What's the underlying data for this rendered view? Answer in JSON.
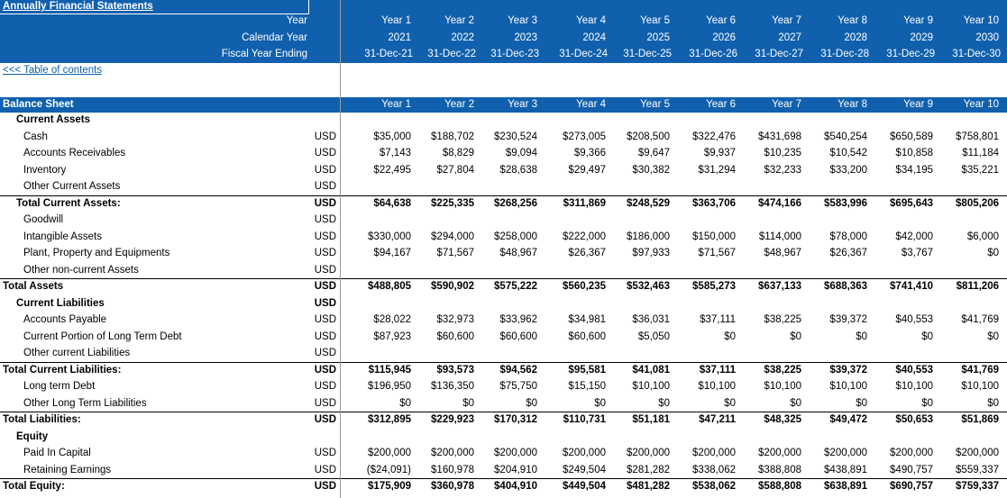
{
  "header": {
    "title": "Annually Financial Statements",
    "row_labels": [
      "Year",
      "Calendar Year",
      "Fiscal Year Ending"
    ],
    "years": [
      "Year 1",
      "Year 2",
      "Year 3",
      "Year 4",
      "Year 5",
      "Year 6",
      "Year 7",
      "Year 8",
      "Year 9",
      "Year 10"
    ],
    "calendar_years": [
      "2021",
      "2022",
      "2023",
      "2024",
      "2025",
      "2026",
      "2027",
      "2028",
      "2029",
      "2030"
    ],
    "fiscal_year_endings": [
      "31-Dec-21",
      "31-Dec-22",
      "31-Dec-23",
      "31-Dec-24",
      "31-Dec-25",
      "31-Dec-26",
      "31-Dec-27",
      "31-Dec-28",
      "31-Dec-29",
      "31-Dec-30"
    ]
  },
  "toc_link": "<<< Table of contents",
  "balance_sheet": {
    "title": "Balance Sheet",
    "rows": [
      {
        "label": "Current Assets",
        "indent": 1,
        "bold": true,
        "unit": "",
        "values": []
      },
      {
        "label": "Cash",
        "indent": 2,
        "bold": false,
        "unit": "USD",
        "values": [
          "$35,000",
          "$188,702",
          "$230,524",
          "$273,005",
          "$208,500",
          "$322,476",
          "$431,698",
          "$540,254",
          "$650,589",
          "$758,801"
        ]
      },
      {
        "label": "Accounts Receivables",
        "indent": 2,
        "bold": false,
        "unit": "USD",
        "values": [
          "$7,143",
          "$8,829",
          "$9,094",
          "$9,366",
          "$9,647",
          "$9,937",
          "$10,235",
          "$10,542",
          "$10,858",
          "$11,184"
        ]
      },
      {
        "label": "Inventory",
        "indent": 2,
        "bold": false,
        "unit": "USD",
        "values": [
          "$22,495",
          "$27,804",
          "$28,638",
          "$29,497",
          "$30,382",
          "$31,294",
          "$32,233",
          "$33,200",
          "$34,195",
          "$35,221"
        ]
      },
      {
        "label": "Other Current Assets",
        "indent": 2,
        "bold": false,
        "unit": "USD",
        "values": []
      },
      {
        "label": "Total Current Assets:",
        "indent": 1,
        "bold": true,
        "unit": "USD",
        "values": [
          "$64,638",
          "$225,335",
          "$268,256",
          "$311,869",
          "$248,529",
          "$363,706",
          "$474,166",
          "$583,996",
          "$695,643",
          "$805,206"
        ]
      },
      {
        "label": "Goodwill",
        "indent": 2,
        "bold": false,
        "unit": "USD",
        "values": []
      },
      {
        "label": "Intangible Assets",
        "indent": 2,
        "bold": false,
        "unit": "USD",
        "values": [
          "$330,000",
          "$294,000",
          "$258,000",
          "$222,000",
          "$186,000",
          "$150,000",
          "$114,000",
          "$78,000",
          "$42,000",
          "$6,000"
        ]
      },
      {
        "label": "Plant, Property and Equipments",
        "indent": 2,
        "bold": false,
        "unit": "USD",
        "values": [
          "$94,167",
          "$71,567",
          "$48,967",
          "$26,367",
          "$97,933",
          "$71,567",
          "$48,967",
          "$26,367",
          "$3,767",
          "$0"
        ]
      },
      {
        "label": "Other non-current Assets",
        "indent": 2,
        "bold": false,
        "unit": "USD",
        "values": []
      },
      {
        "label": "Total Assets",
        "indent": 0,
        "bold": true,
        "unit": "USD",
        "values": [
          "$488,805",
          "$590,902",
          "$575,222",
          "$560,235",
          "$532,463",
          "$585,273",
          "$637,133",
          "$688,363",
          "$741,410",
          "$811,206"
        ]
      },
      {
        "label": "Current Liabilities",
        "indent": 1,
        "bold": true,
        "unit": "USD",
        "values": []
      },
      {
        "label": "Accounts Payable",
        "indent": 2,
        "bold": false,
        "unit": "USD",
        "values": [
          "$28,022",
          "$32,973",
          "$33,962",
          "$34,981",
          "$36,031",
          "$37,111",
          "$38,225",
          "$39,372",
          "$40,553",
          "$41,769"
        ]
      },
      {
        "label": "Current Portion of Long Term Debt",
        "indent": 2,
        "bold": false,
        "unit": "USD",
        "values": [
          "$87,923",
          "$60,600",
          "$60,600",
          "$60,600",
          "$5,050",
          "$0",
          "$0",
          "$0",
          "$0",
          "$0"
        ]
      },
      {
        "label": "Other current Liabilities",
        "indent": 2,
        "bold": false,
        "unit": "USD",
        "values": []
      },
      {
        "label": "Total Current Liabilities:",
        "indent": 0,
        "bold": true,
        "unit": "USD",
        "values": [
          "$115,945",
          "$93,573",
          "$94,562",
          "$95,581",
          "$41,081",
          "$37,111",
          "$38,225",
          "$39,372",
          "$40,553",
          "$41,769"
        ]
      },
      {
        "label": "Long term Debt",
        "indent": 2,
        "bold": false,
        "unit": "USD",
        "values": [
          "$196,950",
          "$136,350",
          "$75,750",
          "$15,150",
          "$10,100",
          "$10,100",
          "$10,100",
          "$10,100",
          "$10,100",
          "$10,100"
        ]
      },
      {
        "label": "Other Long Term Liabilities",
        "indent": 2,
        "bold": false,
        "unit": "USD",
        "values": [
          "$0",
          "$0",
          "$0",
          "$0",
          "$0",
          "$0",
          "$0",
          "$0",
          "$0",
          "$0"
        ]
      },
      {
        "label": "Total Liabilities:",
        "indent": 0,
        "bold": true,
        "unit": "USD",
        "values": [
          "$312,895",
          "$229,923",
          "$170,312",
          "$110,731",
          "$51,181",
          "$47,211",
          "$48,325",
          "$49,472",
          "$50,653",
          "$51,869"
        ]
      },
      {
        "label": "Equity",
        "indent": 1,
        "bold": true,
        "unit": "",
        "values": []
      },
      {
        "label": "Paid In Capital",
        "indent": 2,
        "bold": false,
        "unit": "USD",
        "values": [
          "$200,000",
          "$200,000",
          "$200,000",
          "$200,000",
          "$200,000",
          "$200,000",
          "$200,000",
          "$200,000",
          "$200,000",
          "$200,000"
        ]
      },
      {
        "label": "Retaining Earnings",
        "indent": 2,
        "bold": false,
        "unit": "USD",
        "values": [
          "($24,091)",
          "$160,978",
          "$204,910",
          "$249,504",
          "$281,282",
          "$338,062",
          "$388,808",
          "$438,891",
          "$490,757",
          "$559,337"
        ]
      },
      {
        "label": "Total Equity:",
        "indent": 0,
        "bold": true,
        "unit": "USD",
        "values": [
          "$175,909",
          "$360,978",
          "$404,910",
          "$449,504",
          "$481,282",
          "$538,062",
          "$588,808",
          "$638,891",
          "$690,757",
          "$759,337"
        ]
      }
    ]
  },
  "colors": {
    "header_blue": "#1060ad",
    "link_blue": "#1060ad"
  }
}
